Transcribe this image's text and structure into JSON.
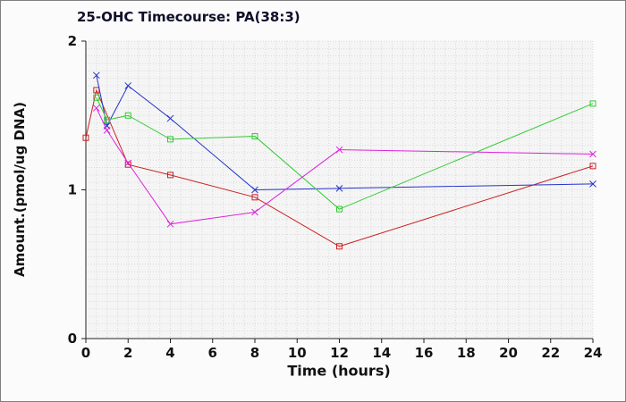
{
  "figure": {
    "title": "25-OHC Timecourse: PA(38:3)",
    "xlabel": "Time (hours)",
    "ylabel": "Amount.(pmol/ug DNA)"
  },
  "chart_data": {
    "type": "line",
    "title": "25-OHC Timecourse: PA(38:3)",
    "xlabel": "Time (hours)",
    "ylabel": "Amount.(pmol/ug DNA)",
    "xlim": [
      0,
      24
    ],
    "ylim": [
      0,
      2
    ],
    "xticks": [
      0,
      2,
      4,
      6,
      8,
      10,
      12,
      14,
      16,
      18,
      20,
      22,
      24
    ],
    "yticks": [
      0,
      1,
      2
    ],
    "grid": true,
    "legend": "none",
    "plot_bg_color": "#f5f5f5",
    "grid_color": "#d9d9d9",
    "axis_color": "#222222",
    "series": [
      {
        "name": "series-red-squares",
        "color": "#cc2222",
        "marker": "square",
        "x": [
          0,
          0.5,
          2,
          4,
          8,
          12,
          24
        ],
        "y": [
          1.35,
          1.67,
          1.17,
          1.1,
          0.95,
          0.62,
          1.16
        ]
      },
      {
        "name": "series-blue-crosses",
        "color": "#2233cc",
        "marker": "x",
        "x": [
          0.5,
          1,
          2,
          4,
          8,
          12,
          24
        ],
        "y": [
          1.77,
          1.43,
          1.7,
          1.48,
          1.0,
          1.01,
          1.04
        ]
      },
      {
        "name": "series-green-squares",
        "color": "#33cc33",
        "marker": "square",
        "x": [
          0.5,
          1,
          2,
          4,
          8,
          12,
          24
        ],
        "y": [
          1.62,
          1.47,
          1.5,
          1.34,
          1.36,
          0.87,
          1.58
        ]
      },
      {
        "name": "series-magenta-crosses",
        "color": "#dd22dd",
        "marker": "x",
        "x": [
          0.5,
          1,
          2,
          4,
          8,
          12,
          24
        ],
        "y": [
          1.55,
          1.4,
          1.18,
          0.77,
          0.85,
          1.27,
          1.24
        ]
      }
    ]
  }
}
